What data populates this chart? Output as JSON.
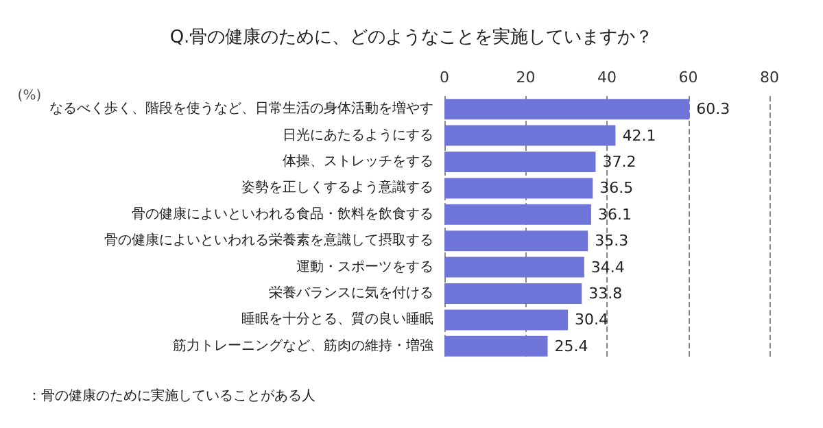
{
  "chart_data": {
    "type": "bar",
    "orientation": "horizontal",
    "title": "Q.骨の健康のために、どのようなことを実施していますか？",
    "xlabel": "(%)",
    "categories": [
      "なるべく歩く、階段を使うなど、日常生活の身体活動を増やす",
      "日光にあたるようにする",
      "体操、ストレッチをする",
      "姿勢を正しくするよう意識する",
      "骨の健康によいといわれる食品・飲料を飲食する",
      "骨の健康によいといわれる栄養素を意識して摂取する",
      "運動・スポーツをする",
      "栄養バランスに気を付ける",
      "睡眠を十分とる、質の良い睡眠",
      "筋力トレーニングなど、筋肉の維持・増強"
    ],
    "values": [
      60.3,
      42.1,
      37.2,
      36.5,
      36.1,
      35.3,
      34.4,
      33.8,
      30.4,
      25.4
    ],
    "color": "#6f74d8",
    "xlim": [
      0,
      80
    ],
    "xticks": [
      0,
      20,
      40,
      60,
      80
    ],
    "grid": "x",
    "data_labels": true,
    "annotations": [
      "：骨の健康のために実施していることがある人"
    ]
  }
}
